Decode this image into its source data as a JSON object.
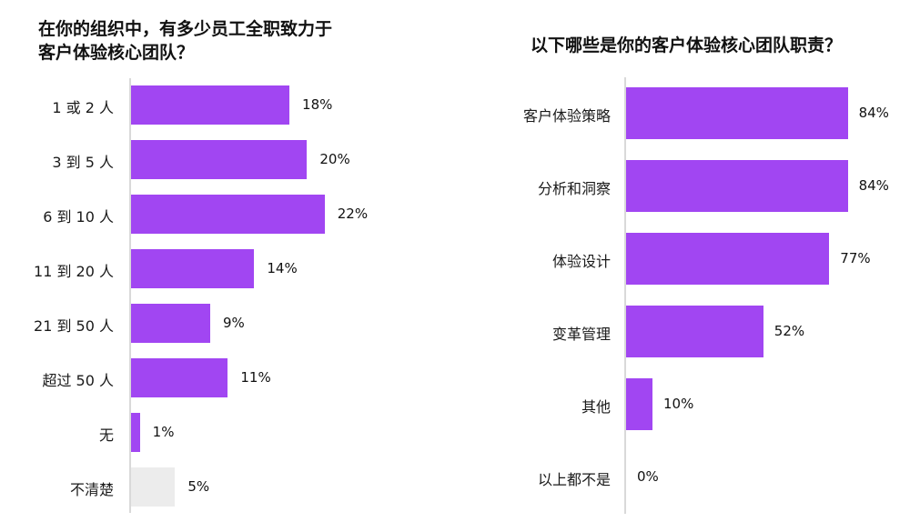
{
  "colors": {
    "bar": "#a146f2",
    "bar_unknown": "#ececec",
    "axis": "#d9d9d9"
  },
  "chart_data": [
    {
      "type": "bar",
      "orientation": "horizontal",
      "title": "在你的组织中，有多少员工全职致力于客户体验核心团队？",
      "title_lines": [
        "在你的组织中，有多少员工全职致力于",
        "客户体验核心团队？"
      ],
      "categories": [
        "1 或 2 人",
        "3 到 5 人",
        "6 到 10 人",
        "11 到 20 人",
        "21 到 50 人",
        "超过 50 人",
        "无",
        "不清楚"
      ],
      "values": [
        18,
        20,
        22,
        14,
        9,
        11,
        1,
        5
      ],
      "labels": [
        "18%",
        "20%",
        "22%",
        "14%",
        "9%",
        "11%",
        "1%",
        "5%"
      ],
      "bar_colors": [
        "#a146f2",
        "#a146f2",
        "#a146f2",
        "#a146f2",
        "#a146f2",
        "#a146f2",
        "#a146f2",
        "#ececec"
      ],
      "unit": "%",
      "xlabel": "",
      "ylabel": "",
      "grid": false,
      "legend": null
    },
    {
      "type": "bar",
      "orientation": "horizontal",
      "title": "以下哪些是你的客户体验核心团队职责？",
      "title_lines": [
        "以下哪些是你的客户体验核心团队职责？"
      ],
      "categories": [
        "客户体验策略",
        "分析和洞察",
        "体验设计",
        "变革管理",
        "其他",
        "以上都不是"
      ],
      "values": [
        84,
        84,
        77,
        52,
        10,
        0
      ],
      "labels": [
        "84%",
        "84%",
        "77%",
        "52%",
        "10%",
        "0%"
      ],
      "bar_colors": [
        "#a146f2",
        "#a146f2",
        "#a146f2",
        "#a146f2",
        "#a146f2",
        "#a146f2"
      ],
      "unit": "%",
      "xlabel": "",
      "ylabel": "",
      "grid": false,
      "legend": null
    }
  ]
}
